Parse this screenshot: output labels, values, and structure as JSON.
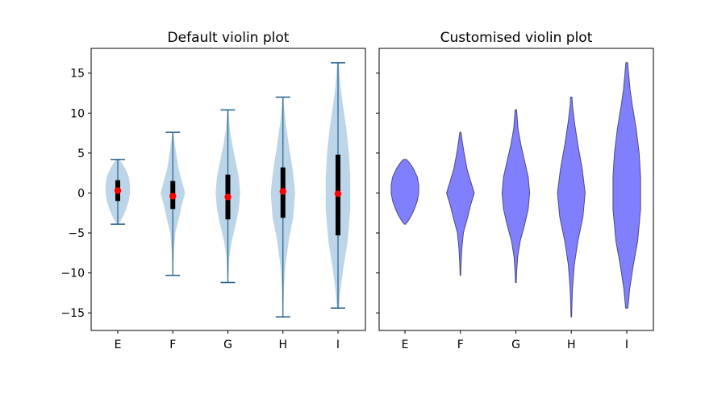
{
  "chart_data": [
    {
      "type": "violin",
      "title": "Default violin plot",
      "categories": [
        "E",
        "F",
        "G",
        "H",
        "I"
      ],
      "ylim": [
        -17.2,
        18.1
      ],
      "yticks": [
        -15,
        -10,
        -5,
        0,
        5,
        10,
        15
      ],
      "grid": false,
      "style": {
        "body_color": "#bcd5e8",
        "extrema_color": "#1f5f8b",
        "box_color": "#000000",
        "median_marker_color": "#ff0000"
      },
      "violins": [
        {
          "category": "E",
          "min": -3.9,
          "max": 4.2,
          "q1": -1.0,
          "median": 0.3,
          "q3": 1.6,
          "profile": [
            [
              -3.9,
              0.05
            ],
            [
              -3.4,
              0.25
            ],
            [
              -2.8,
              0.45
            ],
            [
              -2.0,
              0.65
            ],
            [
              -1.0,
              0.85
            ],
            [
              0.0,
              0.95
            ],
            [
              1.0,
              0.95
            ],
            [
              2.0,
              0.85
            ],
            [
              3.0,
              0.6
            ],
            [
              3.7,
              0.35
            ],
            [
              4.2,
              0.1
            ]
          ]
        },
        {
          "category": "F",
          "min": -10.3,
          "max": 7.6,
          "q1": -2.0,
          "median": -0.4,
          "q3": 1.5,
          "profile": [
            [
              -10.3,
              0.02
            ],
            [
              -9.0,
              0.04
            ],
            [
              -7.0,
              0.1
            ],
            [
              -5.0,
              0.2
            ],
            [
              -3.0,
              0.5
            ],
            [
              -1.5,
              0.7
            ],
            [
              0.0,
              0.95
            ],
            [
              1.5,
              0.7
            ],
            [
              3.0,
              0.45
            ],
            [
              5.0,
              0.25
            ],
            [
              6.5,
              0.12
            ],
            [
              7.6,
              0.04
            ]
          ]
        },
        {
          "category": "G",
          "min": -11.2,
          "max": 10.4,
          "q1": -3.3,
          "median": -0.5,
          "q3": 2.3,
          "profile": [
            [
              -11.2,
              0.03
            ],
            [
              -10.0,
              0.05
            ],
            [
              -8.0,
              0.12
            ],
            [
              -6.0,
              0.3
            ],
            [
              -4.0,
              0.6
            ],
            [
              -2.0,
              0.85
            ],
            [
              0.0,
              0.95
            ],
            [
              2.0,
              0.85
            ],
            [
              4.0,
              0.6
            ],
            [
              6.0,
              0.35
            ],
            [
              8.0,
              0.15
            ],
            [
              10.4,
              0.05
            ]
          ]
        },
        {
          "category": "H",
          "min": -15.5,
          "max": 12.0,
          "q1": -3.1,
          "median": 0.2,
          "q3": 3.2,
          "profile": [
            [
              -15.5,
              0.02
            ],
            [
              -14.0,
              0.04
            ],
            [
              -12.0,
              0.08
            ],
            [
              -9.0,
              0.2
            ],
            [
              -6.0,
              0.45
            ],
            [
              -3.0,
              0.8
            ],
            [
              0.0,
              0.95
            ],
            [
              3.0,
              0.75
            ],
            [
              6.0,
              0.45
            ],
            [
              9.0,
              0.2
            ],
            [
              11.0,
              0.08
            ],
            [
              12.0,
              0.04
            ]
          ]
        },
        {
          "category": "I",
          "min": -14.4,
          "max": 16.3,
          "q1": -5.3,
          "median": -0.1,
          "q3": 4.8,
          "profile": [
            [
              -14.4,
              0.08
            ],
            [
              -12.0,
              0.2
            ],
            [
              -9.0,
              0.45
            ],
            [
              -6.0,
              0.75
            ],
            [
              -2.0,
              0.95
            ],
            [
              2.0,
              0.95
            ],
            [
              5.0,
              0.85
            ],
            [
              8.0,
              0.65
            ],
            [
              11.0,
              0.38
            ],
            [
              13.0,
              0.22
            ],
            [
              15.0,
              0.12
            ],
            [
              16.3,
              0.06
            ]
          ]
        }
      ]
    },
    {
      "type": "violin",
      "title": "Customised violin plot",
      "categories": [
        "E",
        "F",
        "G",
        "H",
        "I"
      ],
      "ylim": [
        -17.2,
        18.1
      ],
      "grid": false,
      "style": {
        "body_color": "#8080ff",
        "edge_color": "#4a4a7f"
      },
      "violins": [
        {
          "category": "E",
          "min": -3.9,
          "max": 4.2,
          "profile": [
            [
              -3.9,
              0.05
            ],
            [
              -3.4,
              0.25
            ],
            [
              -2.8,
              0.45
            ],
            [
              -2.0,
              0.65
            ],
            [
              -1.0,
              0.85
            ],
            [
              0.0,
              0.95
            ],
            [
              1.0,
              0.95
            ],
            [
              2.0,
              0.85
            ],
            [
              3.0,
              0.6
            ],
            [
              3.7,
              0.35
            ],
            [
              4.2,
              0.1
            ]
          ]
        },
        {
          "category": "F",
          "min": -10.3,
          "max": 7.6,
          "profile": [
            [
              -10.3,
              0.02
            ],
            [
              -9.0,
              0.04
            ],
            [
              -7.0,
              0.1
            ],
            [
              -5.0,
              0.2
            ],
            [
              -3.0,
              0.5
            ],
            [
              -1.5,
              0.7
            ],
            [
              0.0,
              0.95
            ],
            [
              1.5,
              0.7
            ],
            [
              3.0,
              0.45
            ],
            [
              5.0,
              0.25
            ],
            [
              6.5,
              0.12
            ],
            [
              7.6,
              0.04
            ]
          ]
        },
        {
          "category": "G",
          "min": -11.2,
          "max": 10.4,
          "profile": [
            [
              -11.2,
              0.03
            ],
            [
              -10.0,
              0.05
            ],
            [
              -8.0,
              0.12
            ],
            [
              -6.0,
              0.3
            ],
            [
              -4.0,
              0.6
            ],
            [
              -2.0,
              0.85
            ],
            [
              0.0,
              0.95
            ],
            [
              2.0,
              0.85
            ],
            [
              4.0,
              0.6
            ],
            [
              6.0,
              0.35
            ],
            [
              8.0,
              0.15
            ],
            [
              10.4,
              0.05
            ]
          ]
        },
        {
          "category": "H",
          "min": -15.5,
          "max": 12.0,
          "profile": [
            [
              -15.5,
              0.02
            ],
            [
              -14.0,
              0.04
            ],
            [
              -12.0,
              0.08
            ],
            [
              -9.0,
              0.2
            ],
            [
              -6.0,
              0.45
            ],
            [
              -3.0,
              0.8
            ],
            [
              0.0,
              0.95
            ],
            [
              3.0,
              0.75
            ],
            [
              6.0,
              0.45
            ],
            [
              9.0,
              0.2
            ],
            [
              11.0,
              0.08
            ],
            [
              12.0,
              0.04
            ]
          ]
        },
        {
          "category": "I",
          "min": -14.4,
          "max": 16.3,
          "profile": [
            [
              -14.4,
              0.08
            ],
            [
              -12.0,
              0.2
            ],
            [
              -9.0,
              0.45
            ],
            [
              -6.0,
              0.75
            ],
            [
              -2.0,
              0.95
            ],
            [
              2.0,
              0.95
            ],
            [
              5.0,
              0.85
            ],
            [
              8.0,
              0.65
            ],
            [
              11.0,
              0.38
            ],
            [
              13.0,
              0.22
            ],
            [
              15.0,
              0.12
            ],
            [
              16.3,
              0.06
            ]
          ]
        }
      ]
    }
  ]
}
